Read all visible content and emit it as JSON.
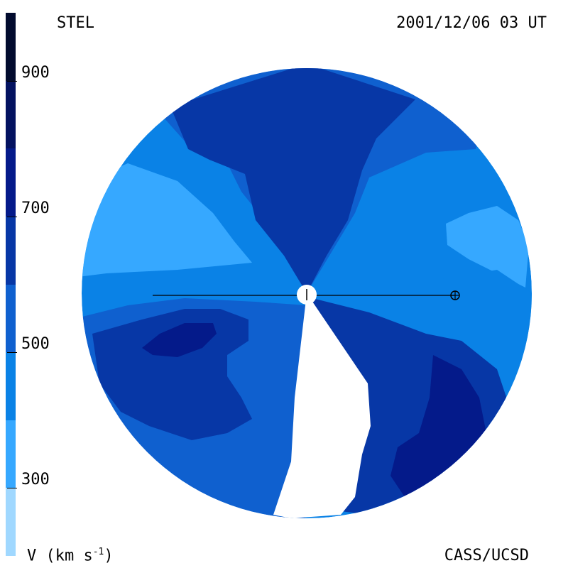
{
  "header": {
    "source": "STEL",
    "timestamp": "2001/12/06 03 UT"
  },
  "footer": {
    "unit_label": "V (km s",
    "unit_exp": "-1",
    "unit_close": ")",
    "credit": "CASS/UCSD"
  },
  "chart_data": {
    "type": "heatmap",
    "title": "",
    "colorbar": {
      "label": "V (km s-1)",
      "ticks": [
        300,
        500,
        700,
        900
      ],
      "range": [
        200,
        1000
      ],
      "levels": [
        {
          "min": 200,
          "max": 300,
          "color": "#a0d8ff"
        },
        {
          "min": 300,
          "max": 400,
          "color": "#36a8ff"
        },
        {
          "min": 400,
          "max": 500,
          "color": "#0a82e6"
        },
        {
          "min": 500,
          "max": 600,
          "color": "#0f60cf"
        },
        {
          "min": 600,
          "max": 700,
          "color": "#0737a6"
        },
        {
          "min": 700,
          "max": 800,
          "color": "#041a8a"
        },
        {
          "min": 800,
          "max": 900,
          "color": "#031260"
        },
        {
          "min": 900,
          "max": 1000,
          "color": "#020b2e"
        }
      ]
    },
    "markers": [
      {
        "name": "Sun",
        "symbol": "+"
      },
      {
        "name": "Earth",
        "symbol": "⊕"
      }
    ]
  }
}
